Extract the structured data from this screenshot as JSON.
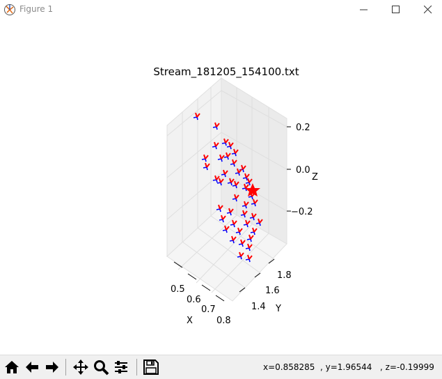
{
  "window": {
    "title": "Figure 1"
  },
  "plot": {
    "title": "Stream_181205_154100.txt",
    "x_axis_label": "X",
    "y_axis_label": "Y",
    "z_axis_label": "Z",
    "x_ticks": [
      "0.5",
      "0.6",
      "0.7",
      "0.8"
    ],
    "y_ticks": [
      "1.4",
      "1.6",
      "1.8"
    ],
    "z_ticks": [
      "0.2",
      "0.0",
      "−0.2"
    ]
  },
  "toolbar": {
    "buttons": [
      {
        "name": "home-button",
        "icon": "home-icon"
      },
      {
        "name": "back-button",
        "icon": "arrow-left-icon"
      },
      {
        "name": "forward-button",
        "icon": "arrow-right-icon"
      },
      {
        "name": "pan-button",
        "icon": "move-icon"
      },
      {
        "name": "zoom-button",
        "icon": "magnifier-icon"
      },
      {
        "name": "configure-subplots-button",
        "icon": "sliders-icon"
      },
      {
        "name": "save-button",
        "icon": "floppy-disk-icon"
      }
    ],
    "coord_x": "x=0.858285",
    "coord_y": ", y=1.96544",
    "coord_z": ", z=-0.19999"
  },
  "colors": {
    "x_axis_marker": "#ff0000",
    "z_axis_marker": "#0000ff",
    "highlight_star": "#ff0000",
    "grid": "#e6e6e6",
    "pane": "#f2f2f2"
  }
}
